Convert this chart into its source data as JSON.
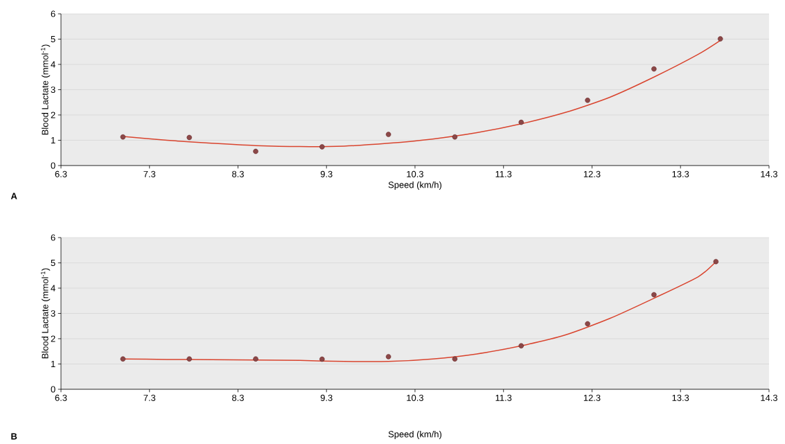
{
  "chart_data": [
    {
      "type": "scatter",
      "xlabel": "Speed (km/h)",
      "ylabel": "Blood Lactate (mmol$^{-1}$)",
      "annotations": [
        "A"
      ],
      "xlim": [
        6.3,
        14.3
      ],
      "xticks": [
        6.3,
        7.3,
        8.3,
        9.3,
        10.3,
        11.3,
        12.3,
        13.3,
        14.3
      ],
      "ylim": [
        0,
        6
      ],
      "yticks": [
        0,
        1,
        2,
        3,
        4,
        5,
        6
      ],
      "grid": "y",
      "series": [
        {
          "marker": "circle",
          "color": "#8b4848",
          "x": [
            7.0,
            7.75,
            8.5,
            9.25,
            10.0,
            10.75,
            11.5,
            12.25,
            13.0,
            13.75
          ],
          "values": [
            1.13,
            1.11,
            0.56,
            0.74,
            1.23,
            1.13,
            1.71,
            2.58,
            3.82,
            5.01
          ]
        },
        {
          "type": "line",
          "color": "#d9442e",
          "marker": "none",
          "x": [
            7.0,
            7.5,
            8.0,
            8.5,
            9.0,
            9.5,
            10.0,
            10.5,
            11.0,
            11.5,
            12.0,
            12.5,
            13.0,
            13.5,
            13.75
          ],
          "values": [
            1.15,
            1.0,
            0.88,
            0.79,
            0.75,
            0.77,
            0.88,
            1.05,
            1.3,
            1.65,
            2.1,
            2.7,
            3.5,
            4.4,
            4.95
          ]
        }
      ]
    },
    {
      "type": "scatter",
      "xlabel": "Speed (km/h)",
      "ylabel": "Blood Lactate (mmol$^{-1}$)",
      "annotations": [
        "B"
      ],
      "xlim": [
        6.3,
        14.3
      ],
      "xticks": [
        6.3,
        7.3,
        8.3,
        9.3,
        10.3,
        11.3,
        12.3,
        13.3,
        14.3
      ],
      "ylim": [
        0,
        6
      ],
      "yticks": [
        0,
        1,
        2,
        3,
        4,
        5,
        6
      ],
      "grid": "y",
      "series": [
        {
          "marker": "circle",
          "color": "#8b4848",
          "x": [
            7.0,
            7.75,
            8.5,
            9.25,
            10.0,
            10.75,
            11.5,
            12.25,
            13.0,
            13.7
          ],
          "values": [
            1.2,
            1.2,
            1.2,
            1.19,
            1.29,
            1.2,
            1.72,
            2.59,
            3.74,
            5.05
          ]
        },
        {
          "type": "line",
          "color": "#d9442e",
          "marker": "none",
          "x": [
            7.0,
            7.5,
            8.0,
            8.5,
            9.0,
            9.5,
            10.0,
            10.5,
            11.0,
            11.5,
            12.0,
            12.5,
            13.0,
            13.5,
            13.7
          ],
          "values": [
            1.2,
            1.18,
            1.17,
            1.16,
            1.14,
            1.1,
            1.1,
            1.2,
            1.4,
            1.72,
            2.15,
            2.8,
            3.6,
            4.45,
            5.05
          ]
        }
      ]
    }
  ]
}
